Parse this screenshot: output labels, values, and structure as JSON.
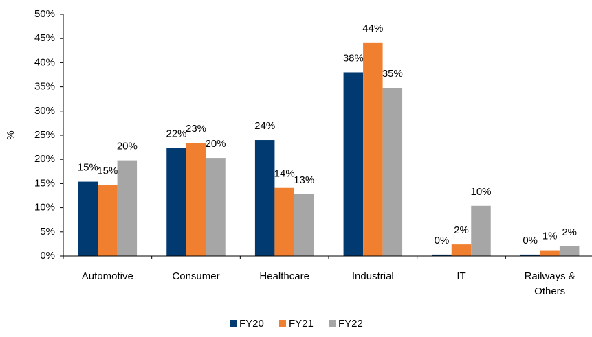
{
  "chart_data": {
    "type": "bar",
    "y_label": "%",
    "categories": [
      "Automotive",
      "Consumer",
      "Healthcare",
      "Industrial",
      "IT",
      "Railways & Others"
    ],
    "series": [
      {
        "name": "FY20",
        "color": "#003a70",
        "values": [
          15.4,
          22.4,
          24.0,
          38.0,
          0.3,
          0.3
        ],
        "value_labels": [
          "15%",
          "22%",
          "24%",
          "38%",
          "0%",
          "0%"
        ]
      },
      {
        "name": "FY21",
        "color": "#f0802f",
        "values": [
          14.7,
          23.4,
          14.1,
          44.2,
          2.4,
          1.2
        ],
        "value_labels": [
          "15%",
          "23%",
          "14%",
          "44%",
          "2%",
          "1%"
        ]
      },
      {
        "name": "FY22",
        "color": "#a6a6a6",
        "values": [
          19.8,
          20.3,
          12.8,
          34.8,
          10.4,
          2.0
        ],
        "value_labels": [
          "20%",
          "20%",
          "13%",
          "35%",
          "10%",
          "2%"
        ]
      }
    ],
    "ylim": [
      0,
      50
    ],
    "yticks": [
      {
        "value": 0,
        "label": "0%"
      },
      {
        "value": 5,
        "label": "5%"
      },
      {
        "value": 10,
        "label": "10%"
      },
      {
        "value": 15,
        "label": "15%"
      },
      {
        "value": 20,
        "label": "20%"
      },
      {
        "value": 25,
        "label": "25%"
      },
      {
        "value": 30,
        "label": "30%"
      },
      {
        "value": 35,
        "label": "35%"
      },
      {
        "value": 40,
        "label": "40%"
      },
      {
        "value": 45,
        "label": "45%"
      },
      {
        "value": 50,
        "label": "50%"
      }
    ],
    "grid": false,
    "legend": "bottom"
  }
}
